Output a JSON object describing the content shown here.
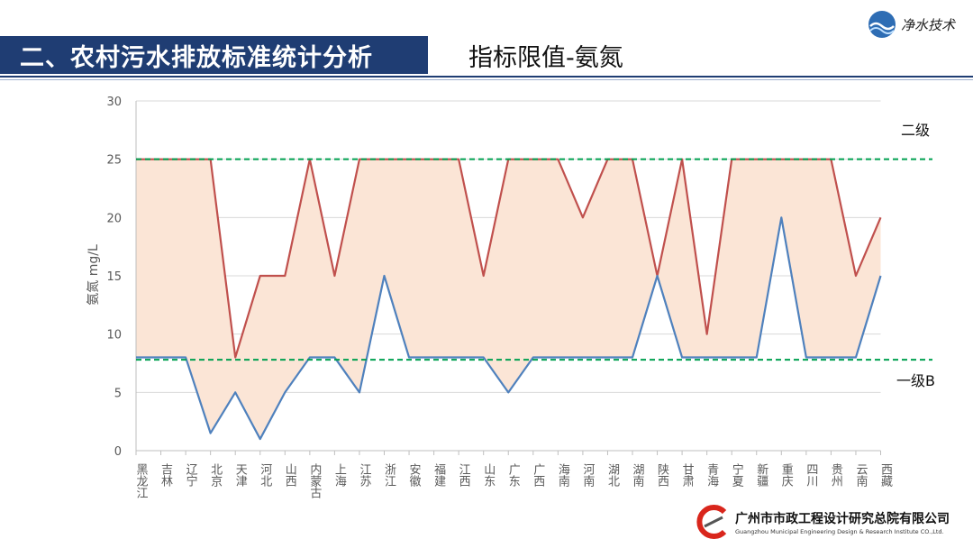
{
  "header": {
    "title": "二、农村污水排放标准统计分析",
    "subtitle": "指标限值-氨氮",
    "logo_text": "净水技术"
  },
  "footer": {
    "org_cn": "广州市市政工程设计研究总院有限公司",
    "org_en": "Guangzhou Municipal Engineering Design & Research Institute CO.,Ltd."
  },
  "colors": {
    "accent": "#1f3d73",
    "grade2_line": "#c0504d",
    "grade1b_line": "#4f81bd",
    "band_fill": "#fbe5d6",
    "ref_line": "#00a050"
  },
  "chart_data": {
    "type": "line",
    "ylabel": "氨氮 mg/L",
    "ylim": [
      0,
      30
    ],
    "yticks": [
      0,
      5,
      10,
      15,
      20,
      25,
      30
    ],
    "grid": true,
    "categories": [
      "黑龙江",
      "吉林",
      "辽宁",
      "北京",
      "天津",
      "河北",
      "山西",
      "内蒙古",
      "上海",
      "江苏",
      "浙江",
      "安徽",
      "福建",
      "江西",
      "山东",
      "广东",
      "广西",
      "海南",
      "河南",
      "湖北",
      "湖南",
      "陕西",
      "甘肃",
      "青海",
      "宁夏",
      "新疆",
      "重庆",
      "四川",
      "贵州",
      "云南",
      "西藏"
    ],
    "series": [
      {
        "key": "grade2",
        "values": [
          25,
          25,
          25,
          25,
          8,
          15,
          15,
          25,
          15,
          25,
          25,
          25,
          25,
          25,
          15,
          25,
          25,
          25,
          20,
          25,
          25,
          15,
          25,
          10,
          25,
          25,
          25,
          25,
          25,
          15,
          20
        ]
      },
      {
        "key": "grade1b",
        "values": [
          8,
          8,
          8,
          1.5,
          5,
          1,
          5,
          8,
          8,
          5,
          15,
          8,
          8,
          8,
          8,
          5,
          8,
          8,
          8,
          8,
          8,
          15,
          8,
          8,
          8,
          8,
          20,
          8,
          8,
          8,
          15
        ]
      }
    ],
    "reference_lines": [
      {
        "value": 25,
        "label": "二级"
      },
      {
        "value": 7.8,
        "label": "一级B"
      }
    ]
  }
}
